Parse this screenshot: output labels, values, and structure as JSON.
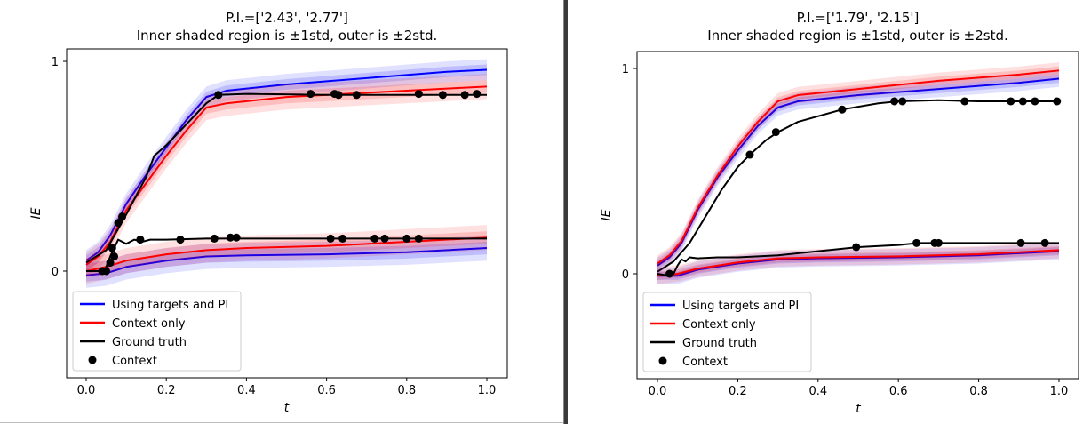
{
  "chart_data": [
    {
      "type": "line",
      "title": "P.I.=['2.43', '2.77']",
      "subtitle": "Inner shaded region is ±1std, outer is ±2std.",
      "xlabel": "t",
      "ylabel": "IE",
      "xlim": [
        -0.05,
        1.05
      ],
      "ylim": [
        -0.5,
        1.05
      ],
      "x_ticks": [
        "0.0",
        "0.2",
        "0.4",
        "0.6",
        "0.8",
        "1.0"
      ],
      "y_ticks": [
        "0",
        "1"
      ],
      "grid": false,
      "legend": {
        "position": "lower-left",
        "entries": [
          {
            "label": "Using targets and PI",
            "color": "#0000ff",
            "marker": "line"
          },
          {
            "label": "Context only",
            "color": "#ff0000",
            "marker": "line"
          },
          {
            "label": "Ground truth",
            "color": "#000000",
            "marker": "line"
          },
          {
            "label": "Context",
            "color": "#000000",
            "marker": "dot"
          }
        ]
      },
      "series": [
        {
          "color": "#0000ff",
          "std": 0.025,
          "x": [
            0,
            0.03,
            0.06,
            0.1,
            0.15,
            0.2,
            0.25,
            0.3,
            0.35,
            0.5,
            0.7,
            0.9,
            1.0
          ],
          "y": [
            0.05,
            0.09,
            0.17,
            0.32,
            0.46,
            0.59,
            0.72,
            0.83,
            0.86,
            0.89,
            0.92,
            0.95,
            0.96
          ]
        },
        {
          "color": "#ff0000",
          "std": 0.03,
          "x": [
            0,
            0.03,
            0.06,
            0.1,
            0.15,
            0.2,
            0.25,
            0.3,
            0.35,
            0.5,
            0.7,
            0.9,
            1.0
          ],
          "y": [
            0.03,
            0.07,
            0.14,
            0.29,
            0.42,
            0.55,
            0.67,
            0.78,
            0.8,
            0.83,
            0.85,
            0.87,
            0.88
          ]
        },
        {
          "color": "#000000",
          "std": 0,
          "x": [
            0,
            0.05,
            0.1,
            0.15,
            0.17,
            0.2,
            0.25,
            0.3,
            0.33,
            0.4,
            0.6,
            0.8,
            1.0
          ],
          "y": [
            0.04,
            0.1,
            0.27,
            0.45,
            0.55,
            0.6,
            0.7,
            0.8,
            0.84,
            0.845,
            0.84,
            0.84,
            0.84
          ]
        },
        {
          "color": "#0000ff",
          "std": 0.03,
          "x": [
            0,
            0.05,
            0.1,
            0.2,
            0.3,
            0.4,
            0.6,
            0.8,
            1.0
          ],
          "y": [
            -0.02,
            -0.01,
            0.02,
            0.05,
            0.07,
            0.075,
            0.08,
            0.09,
            0.11
          ]
        },
        {
          "color": "#ff0000",
          "std": 0.03,
          "x": [
            0,
            0.05,
            0.1,
            0.2,
            0.3,
            0.4,
            0.6,
            0.8,
            1.0
          ],
          "y": [
            0.0,
            0.02,
            0.05,
            0.08,
            0.1,
            0.11,
            0.12,
            0.14,
            0.16
          ]
        },
        {
          "color": "#000000",
          "std": 0,
          "x": [
            0,
            0.03,
            0.04,
            0.05,
            0.06,
            0.07,
            0.08,
            0.1,
            0.12,
            0.14,
            0.16,
            0.2,
            0.3,
            0.4,
            0.6,
            0.8,
            1.0
          ],
          "y": [
            0.0,
            0.0,
            -0.01,
            0.02,
            0.07,
            0.11,
            0.15,
            0.13,
            0.15,
            0.14,
            0.15,
            0.15,
            0.155,
            0.155,
            0.155,
            0.155,
            0.155
          ]
        }
      ],
      "context_points": {
        "x": [
          0.04,
          0.05,
          0.06,
          0.065,
          0.07,
          0.08,
          0.09,
          0.135,
          0.235,
          0.32,
          0.36,
          0.375,
          0.61,
          0.64,
          0.72,
          0.745,
          0.8,
          0.83,
          0.33,
          0.56,
          0.62,
          0.63,
          0.675,
          0.83,
          0.89,
          0.945,
          0.975
        ],
        "y": [
          0.0,
          0.0,
          0.04,
          0.11,
          0.07,
          0.23,
          0.26,
          0.15,
          0.15,
          0.155,
          0.16,
          0.16,
          0.155,
          0.155,
          0.155,
          0.155,
          0.155,
          0.155,
          0.84,
          0.845,
          0.845,
          0.84,
          0.84,
          0.845,
          0.84,
          0.84,
          0.845
        ]
      }
    },
    {
      "type": "line",
      "title": "P.I.=['1.79', '2.15']",
      "subtitle": "Inner shaded region is ±1std, outer is ±2std.",
      "xlabel": "t",
      "ylabel": "IE",
      "xlim": [
        -0.05,
        1.05
      ],
      "ylim": [
        -0.5,
        1.05
      ],
      "x_ticks": [
        "0.0",
        "0.2",
        "0.4",
        "0.6",
        "0.8",
        "1.0"
      ],
      "y_ticks": [
        "0",
        "1"
      ],
      "grid": false,
      "legend": {
        "position": "lower-left",
        "entries": [
          {
            "label": "Using targets and PI",
            "color": "#0000ff",
            "marker": "line"
          },
          {
            "label": "Context only",
            "color": "#ff0000",
            "marker": "line"
          },
          {
            "label": "Ground truth",
            "color": "#000000",
            "marker": "line"
          },
          {
            "label": "Context",
            "color": "#000000",
            "marker": "dot"
          }
        ]
      },
      "series": [
        {
          "color": "#0000ff",
          "std": 0.02,
          "x": [
            0,
            0.03,
            0.06,
            0.1,
            0.15,
            0.2,
            0.25,
            0.3,
            0.35,
            0.5,
            0.7,
            0.9,
            1.0
          ],
          "y": [
            0.04,
            0.08,
            0.15,
            0.31,
            0.47,
            0.6,
            0.72,
            0.81,
            0.84,
            0.87,
            0.9,
            0.93,
            0.95
          ]
        },
        {
          "color": "#ff0000",
          "std": 0.02,
          "x": [
            0,
            0.03,
            0.06,
            0.1,
            0.15,
            0.2,
            0.25,
            0.3,
            0.35,
            0.5,
            0.7,
            0.9,
            1.0
          ],
          "y": [
            0.05,
            0.09,
            0.16,
            0.32,
            0.48,
            0.62,
            0.74,
            0.84,
            0.87,
            0.9,
            0.94,
            0.97,
            0.99
          ]
        },
        {
          "color": "#000000",
          "std": 0,
          "x": [
            0,
            0.04,
            0.08,
            0.12,
            0.16,
            0.2,
            0.23,
            0.27,
            0.3,
            0.35,
            0.46,
            0.55,
            0.6,
            0.7,
            0.8,
            1.0
          ],
          "y": [
            0.01,
            0.06,
            0.15,
            0.28,
            0.41,
            0.52,
            0.58,
            0.65,
            0.69,
            0.74,
            0.8,
            0.83,
            0.84,
            0.845,
            0.84,
            0.84
          ]
        },
        {
          "color": "#0000ff",
          "std": 0.02,
          "x": [
            0,
            0.05,
            0.1,
            0.2,
            0.3,
            0.4,
            0.6,
            0.8,
            1.0
          ],
          "y": [
            -0.01,
            -0.01,
            0.02,
            0.05,
            0.07,
            0.075,
            0.08,
            0.09,
            0.11
          ]
        },
        {
          "color": "#ff0000",
          "std": 0.02,
          "x": [
            0,
            0.05,
            0.1,
            0.2,
            0.3,
            0.4,
            0.6,
            0.8,
            1.0
          ],
          "y": [
            -0.01,
            0.0,
            0.025,
            0.055,
            0.075,
            0.08,
            0.085,
            0.095,
            0.115
          ]
        },
        {
          "color": "#000000",
          "std": 0,
          "x": [
            0,
            0.03,
            0.04,
            0.05,
            0.06,
            0.07,
            0.08,
            0.1,
            0.15,
            0.2,
            0.3,
            0.4,
            0.5,
            0.6,
            0.65,
            0.7,
            0.8,
            1.0
          ],
          "y": [
            0.0,
            -0.01,
            0.0,
            0.04,
            0.07,
            0.06,
            0.08,
            0.075,
            0.08,
            0.08,
            0.09,
            0.11,
            0.13,
            0.14,
            0.15,
            0.15,
            0.15,
            0.15
          ]
        }
      ],
      "context_points": {
        "x": [
          0.03,
          0.23,
          0.295,
          0.46,
          0.59,
          0.61,
          0.765,
          0.88,
          0.91,
          0.94,
          0.995,
          0.495,
          0.645,
          0.69,
          0.7,
          0.905,
          0.965
        ],
        "y": [
          0.0,
          0.58,
          0.69,
          0.8,
          0.84,
          0.84,
          0.84,
          0.84,
          0.84,
          0.84,
          0.84,
          0.13,
          0.15,
          0.15,
          0.15,
          0.15,
          0.15
        ]
      }
    }
  ]
}
